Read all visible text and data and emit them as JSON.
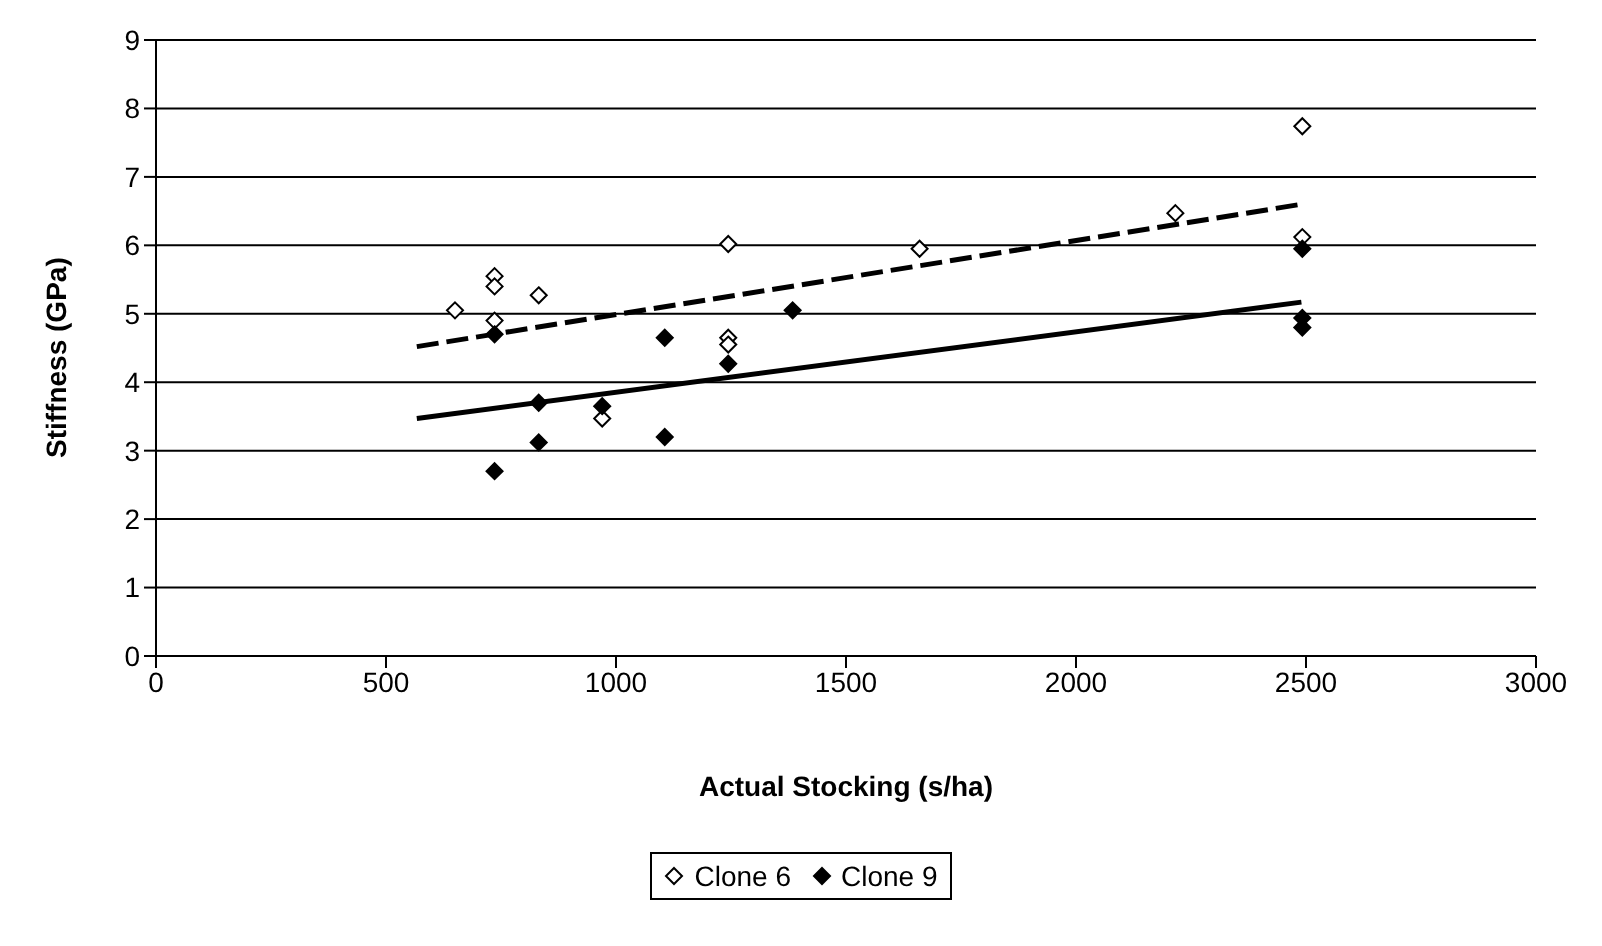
{
  "chart_data": {
    "type": "scatter",
    "xlabel": "Actual Stocking (s/ha)",
    "ylabel": "Stiffness (GPa)",
    "xlim": [
      0,
      3000
    ],
    "xticks": [
      0,
      500,
      1000,
      1500,
      2000,
      2500,
      3000
    ],
    "ylim": [
      0,
      9
    ],
    "yticks": [
      0,
      1,
      2,
      3,
      4,
      5,
      6,
      7,
      8,
      9
    ],
    "grid": "y",
    "legend": "bottom",
    "marker": "diamond",
    "series": [
      {
        "name": "Clone 6",
        "color": "#ffffff",
        "x": [
          650,
          736,
          736,
          736,
          832,
          970,
          1244,
          1244,
          1244,
          1660,
          2216,
          2492,
          2492
        ],
        "values": [
          5.05,
          5.55,
          5.4,
          4.9,
          5.27,
          3.47,
          6.02,
          4.65,
          4.55,
          5.95,
          6.47,
          7.74,
          6.12
        ]
      },
      {
        "name": "Clone 9",
        "color": "#000000",
        "x": [
          736,
          736,
          832,
          832,
          970,
          1106,
          1106,
          1244,
          1384,
          2492,
          2492,
          2492
        ],
        "values": [
          4.7,
          2.7,
          3.7,
          3.12,
          3.65,
          4.65,
          3.2,
          4.27,
          5.05,
          5.95,
          4.94,
          4.8
        ]
      },
      {
        "type": "line",
        "color": "#000000",
        "line_style": "dashed",
        "marker": "none",
        "x": [
          567,
          2490
        ],
        "values": [
          4.52,
          6.6
        ]
      },
      {
        "type": "line",
        "color": "#000000",
        "line_style": "solid",
        "marker": "none",
        "x": [
          567,
          2490
        ],
        "values": [
          3.47,
          5.17
        ]
      }
    ]
  }
}
